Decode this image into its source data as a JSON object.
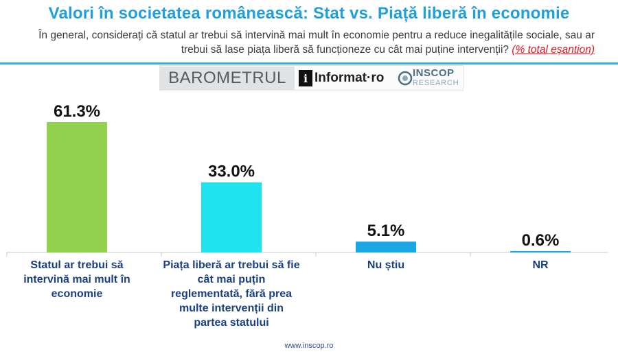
{
  "header": {
    "title": "Valori în societatea românească: Stat vs. Piață liberă în economie",
    "question": "În general, considerați că statul ar trebui să intervină mai mult în economie pentru a reduce inegalitățile sociale, sau ar trebui să lase piața liberă să funcționeze cu cât mai puține intervenții?",
    "sample_note": "(% total eșantion)"
  },
  "logos": {
    "barometer": "BAROMETRUL",
    "informat": "Informat·ro",
    "informat_mark": "i",
    "inscop": "INSCOP",
    "inscop_sub": "RESEARCH"
  },
  "footer": {
    "url": "www.inscop.ro"
  },
  "colors": {
    "title": "#1fa0db",
    "labels": "#1a3f82"
  },
  "chart_data": {
    "type": "bar",
    "title": "Valori în societatea românească: Stat vs. Piață liberă în economie",
    "categories": [
      "Statul ar trebui să intervină mai mult în economie",
      "Piața liberă ar trebui să fie cât mai puțin reglementată, fără prea multe intervenții din partea statului",
      "Nu știu",
      "NR"
    ],
    "values": [
      61.3,
      33.0,
      5.1,
      0.6
    ],
    "value_labels": [
      "61.3%",
      "33.0%",
      "5.1%",
      "0.6%"
    ],
    "bar_colors": [
      "#92d050",
      "#1fe3ee",
      "#1ba7e6",
      "#1ba7e6"
    ],
    "unit": "%",
    "ylim": [
      0,
      61.3
    ],
    "grid": false,
    "legend": "none"
  }
}
